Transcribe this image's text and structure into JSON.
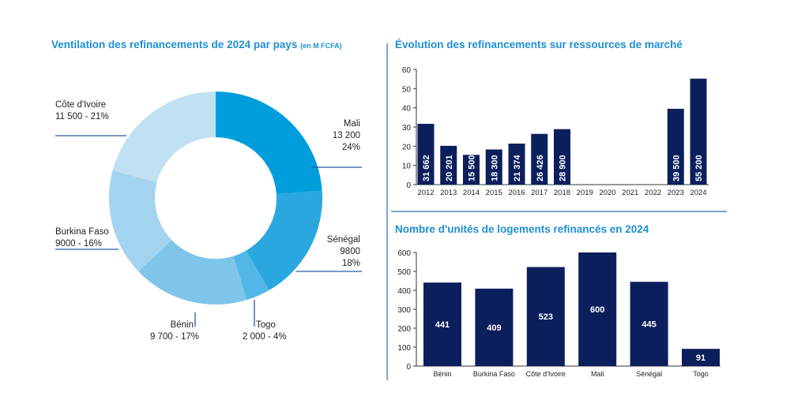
{
  "chart_data": [
    {
      "type": "pie",
      "donut": true,
      "title": "Ventilation des refinancements de 2024 par pays",
      "title_unit": "(en M FCFA)",
      "slices": [
        {
          "label": "Mali",
          "value": 13200,
          "value_label": "13 200",
          "percent": "24%",
          "color": "#009ddc"
        },
        {
          "label": "Sénégal",
          "value": 9800,
          "value_label": "9800",
          "percent": "18%",
          "color": "#2aa7df"
        },
        {
          "label": "Togo",
          "value": 2000,
          "value_label": "2 000",
          "percent": "4%",
          "color": "#52b7e6"
        },
        {
          "label": "Bénin",
          "value": 9700,
          "value_label": "9 700",
          "percent": "17%",
          "color": "#7fc5ea"
        },
        {
          "label": "Burkina Faso",
          "value": 9000,
          "value_label": "9000",
          "percent": "16%",
          "color": "#a2d3ef"
        },
        {
          "label": "Côte d'Ivoire",
          "value": 11500,
          "value_label": "11 500",
          "percent": "21%",
          "color": "#c0e1f3"
        }
      ]
    },
    {
      "type": "bar",
      "title": "Évolution des refinancements sur ressources de marché",
      "categories": [
        "2012",
        "2013",
        "2014",
        "2015",
        "2016",
        "2017",
        "2018",
        "2019",
        "2020",
        "2021",
        "2022",
        "2023",
        "2024"
      ],
      "values": [
        31.662,
        20.201,
        15.5,
        18.3,
        21.374,
        26.426,
        28.9,
        0,
        0,
        0,
        0,
        39.5,
        55.2
      ],
      "data_labels": [
        "31 662",
        "20 201",
        "15 500",
        "18 300",
        "21 374",
        "26 426",
        "28 900",
        "",
        "",
        "",
        "",
        "39 500",
        "55 200"
      ],
      "ylim": [
        0,
        60
      ],
      "yticks": [
        "0",
        "10",
        "20",
        "30",
        "40",
        "50",
        "60"
      ],
      "color": "#0b1f5c"
    },
    {
      "type": "bar",
      "title": "Nombre d'unités de logements refinancés en 2024",
      "categories": [
        "Bénin",
        "Burkina Faso",
        "Côte d'Ivoire",
        "Mali",
        "Sénégal",
        "Togo"
      ],
      "values": [
        441,
        409,
        523,
        600,
        445,
        91
      ],
      "data_labels": [
        "441",
        "409",
        "523",
        "600",
        "445",
        "91"
      ],
      "ylim": [
        0,
        600
      ],
      "yticks": [
        "0",
        "100",
        "200",
        "300",
        "400",
        "500",
        "600"
      ],
      "color": "#0b1f5c"
    }
  ]
}
